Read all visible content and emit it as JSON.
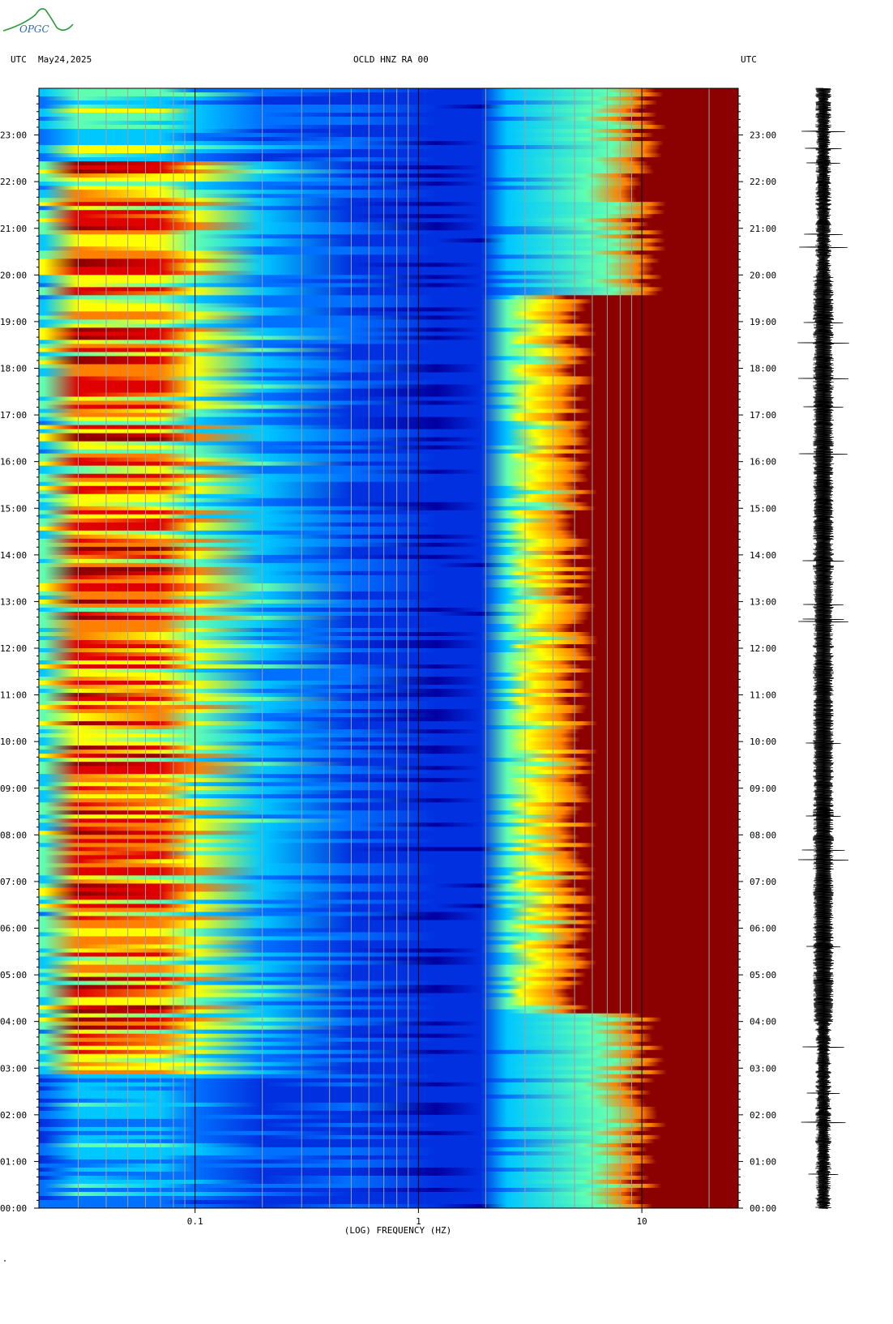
{
  "header": {
    "left_tz": "UTC",
    "date": "May24,2025",
    "station": "OCLD HNZ RA 00",
    "right_tz": "UTC"
  },
  "logo": {
    "text": "OPGC"
  },
  "footer": {
    "mark": "\""
  },
  "chart_data": {
    "type": "heatmap",
    "title": "OCLD HNZ RA 00",
    "xlabel": "(LOG) FREQUENCY (HZ)",
    "x_scale": "log",
    "x_range_hz": [
      0.02,
      27
    ],
    "x_ticks": [
      {
        "value": 0.1,
        "label": "0.1"
      },
      {
        "value": 1,
        "label": "1"
      },
      {
        "value": 10,
        "label": "10"
      }
    ],
    "y_label_left": "UTC",
    "y_label_right": "UTC",
    "y_range_hours": [
      0,
      24
    ],
    "y_ticks": [
      "00:00",
      "01:00",
      "02:00",
      "03:00",
      "04:00",
      "05:00",
      "06:00",
      "07:00",
      "08:00",
      "09:00",
      "10:00",
      "11:00",
      "12:00",
      "13:00",
      "14:00",
      "15:00",
      "16:00",
      "17:00",
      "18:00",
      "19:00",
      "20:00",
      "21:00",
      "22:00",
      "23:00"
    ],
    "colors": [
      "#0000a0",
      "#0030e0",
      "#0070ff",
      "#00c8ff",
      "#60ffb0",
      "#ffff00",
      "#ff8000",
      "#e00000",
      "#8b0000"
    ],
    "trace": "seismogram"
  }
}
